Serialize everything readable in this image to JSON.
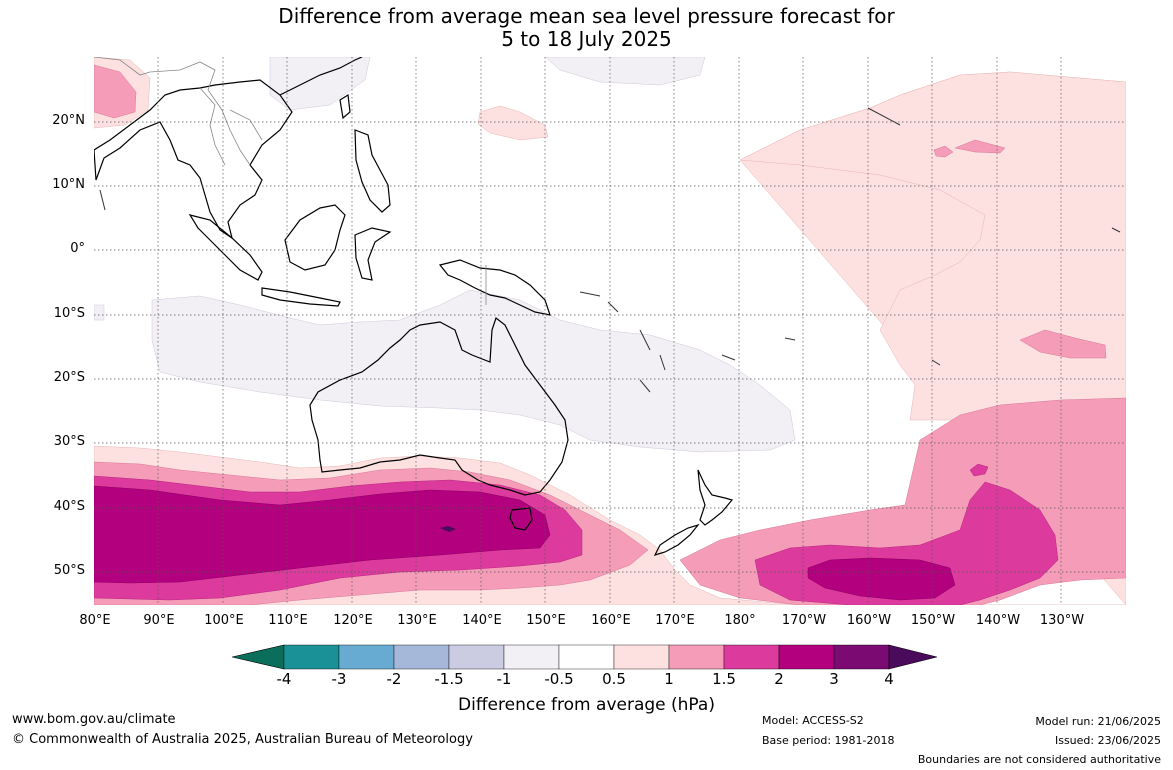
{
  "title_line1": "Difference from average mean sea level pressure forecast for",
  "title_line2": "5 to 18 July 2025",
  "lat_labels": [
    "20°N",
    "10°N",
    "0°",
    "10°S",
    "20°S",
    "30°S",
    "40°S",
    "50°S"
  ],
  "lat_values": [
    20,
    10,
    0,
    -10,
    -20,
    -30,
    -40,
    -50
  ],
  "lon_labels": [
    "80°E",
    "90°E",
    "100°E",
    "110°E",
    "120°E",
    "130°E",
    "140°E",
    "150°E",
    "160°E",
    "170°E",
    "180°",
    "170°W",
    "160°W",
    "150°W",
    "140°W",
    "130°W"
  ],
  "lon_values": [
    80,
    90,
    100,
    110,
    120,
    130,
    140,
    150,
    160,
    170,
    180,
    190,
    200,
    210,
    220,
    230
  ],
  "lat_range": [
    -55,
    30
  ],
  "lon_range": [
    80,
    240
  ],
  "legend": {
    "title": "Difference from average (hPa)",
    "ticks": [
      "-4",
      "-3",
      "-2",
      "-1.5",
      "-1",
      "-0.5",
      "0.5",
      "1",
      "1.5",
      "2",
      "3",
      "4"
    ],
    "colors": [
      "#0b6e5b",
      "#1a9196",
      "#67aad2",
      "#a5b8d9",
      "#cbcce2",
      "#f2eff5",
      "#ffffff",
      "#fde0e0",
      "#f59cb8",
      "#dc3a9c",
      "#b3007f",
      "#7b0b73",
      "#4a0b5c"
    ]
  },
  "footer": {
    "website": "www.bom.gov.au/climate",
    "copyright": "© Commonwealth of Australia 2025, Australian Bureau of Meteorology",
    "model": "Model: ACCESS-S2",
    "base_period": "Base period: 1981-2018",
    "model_run": "Model run: 21/06/2025",
    "issued": "Issued: 23/06/2025",
    "disclaimer": "Boundaries are not considered authoritative"
  }
}
